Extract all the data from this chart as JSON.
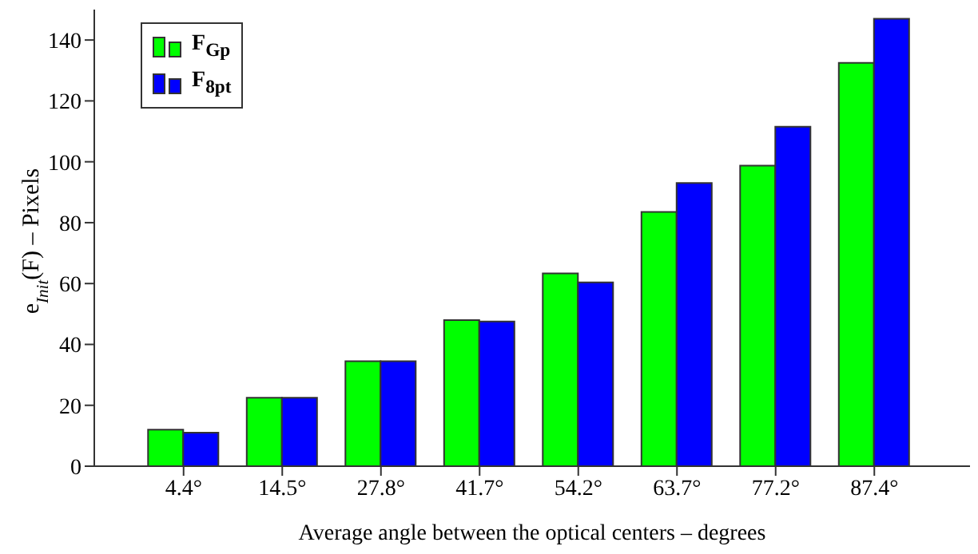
{
  "chart_data": {
    "type": "bar",
    "xlabel": "Average angle between the optical centers – degrees",
    "ylabel": "e$_{Init}$(F) – Pixels",
    "categories": [
      "4.4°",
      "14.5°",
      "27.8°",
      "41.7°",
      "54.2°",
      "63.7°",
      "77.2°",
      "87.4°"
    ],
    "series": [
      {
        "name": "F$_{Gp}$",
        "color": "#00ff00",
        "values": [
          12,
          22.5,
          34.5,
          48,
          63.3,
          83.5,
          98.7,
          132.5
        ]
      },
      {
        "name": "F$_{8pt}$",
        "color": "#0000ff",
        "values": [
          11,
          22.5,
          34.5,
          47.5,
          60.4,
          93,
          111.5,
          147
        ]
      }
    ],
    "ylim": [
      0,
      150
    ],
    "yticks": [
      0,
      20,
      40,
      60,
      80,
      100,
      120,
      140
    ],
    "grid": false,
    "legend": "top left"
  }
}
